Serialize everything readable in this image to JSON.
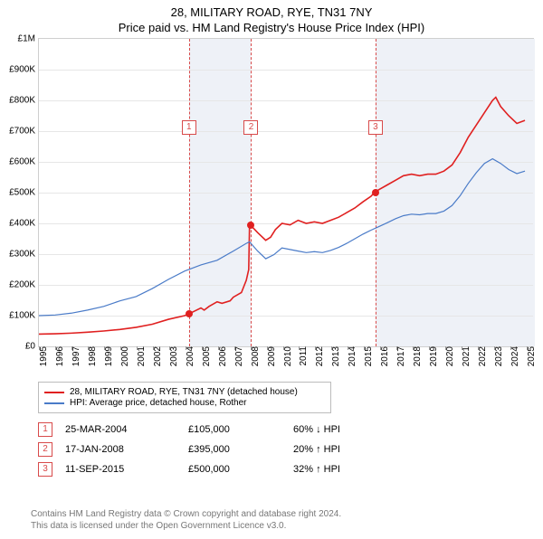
{
  "title_line1": "28, MILITARY ROAD, RYE, TN31 7NY",
  "title_line2": "Price paid vs. HM Land Registry's House Price Index (HPI)",
  "chart": {
    "type": "line",
    "background_color": "#ffffff",
    "grid_color": "#e6e6e6",
    "border_color": "#cfcfcf",
    "band_color": "#eef1f7",
    "x_min_year": 1995,
    "x_max_year": 2025.5,
    "x_ticks": [
      1995,
      1996,
      1997,
      1998,
      1999,
      2000,
      2001,
      2002,
      2003,
      2004,
      2005,
      2006,
      2007,
      2008,
      2009,
      2010,
      2011,
      2012,
      2013,
      2014,
      2015,
      2016,
      2017,
      2018,
      2019,
      2020,
      2021,
      2022,
      2023,
      2024,
      2025
    ],
    "y_min": 0,
    "y_max": 1000000,
    "y_ticks": [
      {
        "v": 0,
        "label": "£0"
      },
      {
        "v": 100000,
        "label": "£100K"
      },
      {
        "v": 200000,
        "label": "£200K"
      },
      {
        "v": 300000,
        "label": "£300K"
      },
      {
        "v": 400000,
        "label": "£400K"
      },
      {
        "v": 500000,
        "label": "£500K"
      },
      {
        "v": 600000,
        "label": "£600K"
      },
      {
        "v": 700000,
        "label": "£700K"
      },
      {
        "v": 800000,
        "label": "£800K"
      },
      {
        "v": 900000,
        "label": "£900K"
      },
      {
        "v": 1000000,
        "label": "£1M"
      }
    ],
    "band_ranges": [
      [
        2004.23,
        2008.05
      ],
      [
        2015.7,
        2025.5
      ]
    ],
    "sale_dash_color": "#d84a4a",
    "series": [
      {
        "name": "property",
        "label": "28, MILITARY ROAD, RYE, TN31 7NY (detached house)",
        "color": "#e02020",
        "width": 1.6,
        "points": [
          [
            1995,
            40000
          ],
          [
            1996,
            41000
          ],
          [
            1997,
            43000
          ],
          [
            1998,
            46000
          ],
          [
            1999,
            50000
          ],
          [
            2000,
            55000
          ],
          [
            2001,
            62000
          ],
          [
            2002,
            72000
          ],
          [
            2003,
            88000
          ],
          [
            2004,
            100000
          ],
          [
            2004.23,
            105000
          ],
          [
            2005,
            125000
          ],
          [
            2005.2,
            118000
          ],
          [
            2005.5,
            130000
          ],
          [
            2006,
            145000
          ],
          [
            2006.3,
            140000
          ],
          [
            2006.8,
            148000
          ],
          [
            2007,
            160000
          ],
          [
            2007.5,
            175000
          ],
          [
            2007.8,
            215000
          ],
          [
            2007.95,
            250000
          ],
          [
            2008.0,
            395000
          ],
          [
            2008.05,
            395000
          ],
          [
            2008.5,
            370000
          ],
          [
            2009,
            345000
          ],
          [
            2009.3,
            355000
          ],
          [
            2009.6,
            380000
          ],
          [
            2010,
            400000
          ],
          [
            2010.5,
            395000
          ],
          [
            2011,
            410000
          ],
          [
            2011.5,
            400000
          ],
          [
            2012,
            405000
          ],
          [
            2012.5,
            400000
          ],
          [
            2013,
            410000
          ],
          [
            2013.5,
            420000
          ],
          [
            2014,
            435000
          ],
          [
            2014.5,
            450000
          ],
          [
            2015,
            470000
          ],
          [
            2015.5,
            488000
          ],
          [
            2015.7,
            500000
          ],
          [
            2016,
            510000
          ],
          [
            2016.5,
            525000
          ],
          [
            2017,
            540000
          ],
          [
            2017.5,
            555000
          ],
          [
            2018,
            560000
          ],
          [
            2018.5,
            555000
          ],
          [
            2019,
            560000
          ],
          [
            2019.5,
            560000
          ],
          [
            2020,
            570000
          ],
          [
            2020.5,
            590000
          ],
          [
            2021,
            630000
          ],
          [
            2021.5,
            680000
          ],
          [
            2022,
            720000
          ],
          [
            2022.5,
            760000
          ],
          [
            2023,
            800000
          ],
          [
            2023.2,
            810000
          ],
          [
            2023.5,
            780000
          ],
          [
            2024,
            750000
          ],
          [
            2024.5,
            725000
          ],
          [
            2025,
            735000
          ]
        ]
      },
      {
        "name": "hpi",
        "label": "HPI: Average price, detached house, Rother",
        "color": "#4a7bc8",
        "width": 1.2,
        "points": [
          [
            1995,
            100000
          ],
          [
            1996,
            102000
          ],
          [
            1997,
            108000
          ],
          [
            1998,
            118000
          ],
          [
            1999,
            130000
          ],
          [
            2000,
            148000
          ],
          [
            2001,
            162000
          ],
          [
            2002,
            188000
          ],
          [
            2003,
            218000
          ],
          [
            2004,
            245000
          ],
          [
            2005,
            265000
          ],
          [
            2006,
            280000
          ],
          [
            2007,
            310000
          ],
          [
            2007.8,
            335000
          ],
          [
            2008,
            340000
          ],
          [
            2008.5,
            310000
          ],
          [
            2009,
            285000
          ],
          [
            2009.5,
            298000
          ],
          [
            2010,
            320000
          ],
          [
            2010.5,
            315000
          ],
          [
            2011,
            310000
          ],
          [
            2011.5,
            305000
          ],
          [
            2012,
            308000
          ],
          [
            2012.5,
            305000
          ],
          [
            2013,
            312000
          ],
          [
            2013.5,
            322000
          ],
          [
            2014,
            335000
          ],
          [
            2014.5,
            350000
          ],
          [
            2015,
            365000
          ],
          [
            2015.5,
            378000
          ],
          [
            2016,
            390000
          ],
          [
            2016.5,
            402000
          ],
          [
            2017,
            415000
          ],
          [
            2017.5,
            425000
          ],
          [
            2018,
            430000
          ],
          [
            2018.5,
            428000
          ],
          [
            2019,
            432000
          ],
          [
            2019.5,
            432000
          ],
          [
            2020,
            440000
          ],
          [
            2020.5,
            458000
          ],
          [
            2021,
            490000
          ],
          [
            2021.5,
            530000
          ],
          [
            2022,
            565000
          ],
          [
            2022.5,
            595000
          ],
          [
            2023,
            610000
          ],
          [
            2023.5,
            595000
          ],
          [
            2024,
            575000
          ],
          [
            2024.5,
            562000
          ],
          [
            2025,
            570000
          ]
        ]
      }
    ],
    "sales": [
      {
        "n": "1",
        "year": 2004.23,
        "price": 105000,
        "date": "25-MAR-2004",
        "price_label": "£105,000",
        "diff": "60% ↓ HPI",
        "marker_top": 90
      },
      {
        "n": "2",
        "year": 2008.05,
        "price": 395000,
        "date": "17-JAN-2008",
        "price_label": "£395,000",
        "diff": "20% ↑ HPI",
        "marker_top": 90
      },
      {
        "n": "3",
        "year": 2015.7,
        "price": 500000,
        "date": "11-SEP-2015",
        "price_label": "£500,000",
        "diff": "32% ↑ HPI",
        "marker_top": 90
      }
    ]
  },
  "legend": {
    "items": [
      {
        "series": "property"
      },
      {
        "series": "hpi"
      }
    ]
  },
  "footer_line1": "Contains HM Land Registry data © Crown copyright and database right 2024.",
  "footer_line2": "This data is licensed under the Open Government Licence v3.0."
}
